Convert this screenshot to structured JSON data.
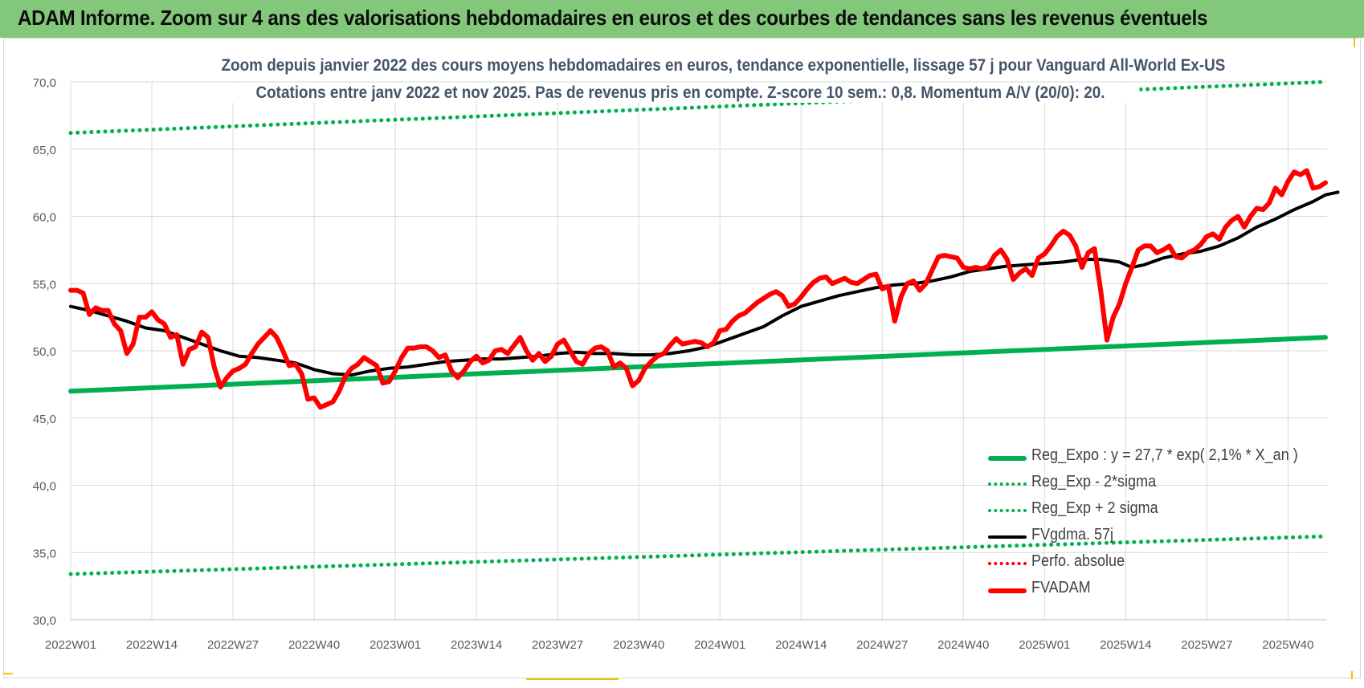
{
  "banner": {
    "title": "ADAM Informe. Zoom sur 4 ans des valorisations hebdomadaires en euros et des courbes de tendances sans les revenus éventuels"
  },
  "colors": {
    "banner": "#82c77a",
    "trend": "#00b050",
    "price": "#ff0000",
    "smooth": "#000000",
    "axis_text": "#595959"
  },
  "chart_data": {
    "type": "line",
    "title": "Zoom depuis janvier 2022 des cours moyens hebdomadaires en euros, tendance exponentielle, lissage 57 j pour Vanguard All-World Ex-US",
    "subtitle": "Cotations entre janv 2022 et nov 2025. Pas de revenus pris en compte. Z-score 10 sem.: 0,8. Momentum A/V (20/0): 20.",
    "xlabel": "",
    "ylabel": "",
    "ylim": [
      30,
      70
    ],
    "yticks": [
      "30,0",
      "35,0",
      "40,0",
      "45,0",
      "50,0",
      "55,0",
      "60,0",
      "65,0",
      "70,0"
    ],
    "week_count": 202,
    "xticks": [
      {
        "label": "2022W01",
        "week": 0
      },
      {
        "label": "2022W14",
        "week": 13
      },
      {
        "label": "2022W27",
        "week": 26
      },
      {
        "label": "2022W40",
        "week": 39
      },
      {
        "label": "2023W01",
        "week": 52
      },
      {
        "label": "2023W14",
        "week": 65
      },
      {
        "label": "2023W27",
        "week": 78
      },
      {
        "label": "2023W40",
        "week": 91
      },
      {
        "label": "2024W01",
        "week": 104
      },
      {
        "label": "2024W14",
        "week": 117
      },
      {
        "label": "2024W27",
        "week": 130
      },
      {
        "label": "2024W40",
        "week": 143
      },
      {
        "label": "2025W01",
        "week": 156
      },
      {
        "label": "2025W14",
        "week": 169
      },
      {
        "label": "2025W27",
        "week": 182
      },
      {
        "label": "2025W40",
        "week": 195
      }
    ],
    "legend_position": "bottom-right",
    "series": [
      {
        "name": "Reg_Expo : y = 27,7 * exp( 2,1% *  X_an )",
        "style": "solid-thick",
        "color": "#00b050",
        "points": [
          [
            0,
            47.0
          ],
          [
            201,
            51.0
          ]
        ]
      },
      {
        "name": "Reg_Exp - 2*sigma",
        "style": "dotted",
        "color": "#00b050",
        "points": [
          [
            0,
            33.4
          ],
          [
            201,
            36.2
          ]
        ]
      },
      {
        "name": "Reg_Exp + 2 sigma",
        "style": "dotted",
        "color": "#00b050",
        "points": [
          [
            0,
            66.2
          ],
          [
            201,
            70.0
          ]
        ]
      },
      {
        "name": "FVgdma. 57j",
        "style": "solid",
        "color": "#000000",
        "points": [
          [
            0,
            53.3
          ],
          [
            3,
            53.0
          ],
          [
            6,
            52.6
          ],
          [
            9,
            52.2
          ],
          [
            12,
            51.7
          ],
          [
            15,
            51.5
          ],
          [
            18,
            51.0
          ],
          [
            21,
            50.5
          ],
          [
            24,
            50.0
          ],
          [
            27,
            49.6
          ],
          [
            30,
            49.5
          ],
          [
            33,
            49.3
          ],
          [
            36,
            49.1
          ],
          [
            39,
            48.6
          ],
          [
            42,
            48.3
          ],
          [
            45,
            48.2
          ],
          [
            48,
            48.5
          ],
          [
            51,
            48.7
          ],
          [
            54,
            48.8
          ],
          [
            57,
            49.0
          ],
          [
            60,
            49.2
          ],
          [
            63,
            49.3
          ],
          [
            66,
            49.4
          ],
          [
            69,
            49.4
          ],
          [
            72,
            49.5
          ],
          [
            75,
            49.6
          ],
          [
            78,
            49.8
          ],
          [
            81,
            49.9
          ],
          [
            84,
            49.8
          ],
          [
            87,
            49.8
          ],
          [
            90,
            49.7
          ],
          [
            93,
            49.7
          ],
          [
            96,
            49.8
          ],
          [
            99,
            50.0
          ],
          [
            102,
            50.3
          ],
          [
            105,
            50.8
          ],
          [
            108,
            51.3
          ],
          [
            111,
            51.8
          ],
          [
            114,
            52.6
          ],
          [
            117,
            53.3
          ],
          [
            120,
            53.7
          ],
          [
            123,
            54.1
          ],
          [
            126,
            54.4
          ],
          [
            129,
            54.7
          ],
          [
            132,
            54.9
          ],
          [
            135,
            55.0
          ],
          [
            138,
            55.2
          ],
          [
            141,
            55.5
          ],
          [
            144,
            55.9
          ],
          [
            147,
            56.1
          ],
          [
            150,
            56.3
          ],
          [
            153,
            56.4
          ],
          [
            156,
            56.5
          ],
          [
            159,
            56.6
          ],
          [
            162,
            56.8
          ],
          [
            165,
            56.8
          ],
          [
            168,
            56.6
          ],
          [
            170,
            56.2
          ],
          [
            172,
            56.4
          ],
          [
            175,
            56.9
          ],
          [
            178,
            57.2
          ],
          [
            181,
            57.4
          ],
          [
            184,
            57.8
          ],
          [
            187,
            58.4
          ],
          [
            190,
            59.2
          ],
          [
            193,
            59.8
          ],
          [
            196,
            60.5
          ],
          [
            199,
            61.1
          ],
          [
            201,
            61.6
          ],
          [
            203,
            61.8
          ]
        ]
      },
      {
        "name": "Perfo. absolue",
        "style": "dotted",
        "color": "#ff0000",
        "points": []
      },
      {
        "name": "FVADAM",
        "style": "solid-thick",
        "color": "#ff0000",
        "points": [
          [
            0,
            54.5
          ],
          [
            1,
            54.5
          ],
          [
            2,
            54.3
          ],
          [
            3,
            52.7
          ],
          [
            4,
            53.2
          ],
          [
            5,
            53.0
          ],
          [
            6,
            53.0
          ],
          [
            7,
            52.0
          ],
          [
            8,
            51.5
          ],
          [
            9,
            49.8
          ],
          [
            10,
            50.5
          ],
          [
            11,
            52.5
          ],
          [
            12,
            52.5
          ],
          [
            13,
            52.9
          ],
          [
            14,
            52.3
          ],
          [
            15,
            52.0
          ],
          [
            16,
            51.0
          ],
          [
            17,
            51.2
          ],
          [
            18,
            49.0
          ],
          [
            19,
            50.1
          ],
          [
            20,
            50.3
          ],
          [
            21,
            51.4
          ],
          [
            22,
            51.0
          ],
          [
            23,
            48.8
          ],
          [
            24,
            47.3
          ],
          [
            25,
            48.0
          ],
          [
            26,
            48.5
          ],
          [
            27,
            48.7
          ],
          [
            28,
            49.0
          ],
          [
            29,
            49.8
          ],
          [
            30,
            50.5
          ],
          [
            31,
            51.0
          ],
          [
            32,
            51.5
          ],
          [
            33,
            51.0
          ],
          [
            34,
            50.0
          ],
          [
            35,
            48.9
          ],
          [
            36,
            49.0
          ],
          [
            37,
            48.3
          ],
          [
            38,
            46.4
          ],
          [
            39,
            46.5
          ],
          [
            40,
            45.8
          ],
          [
            41,
            46.0
          ],
          [
            42,
            46.2
          ],
          [
            43,
            47.0
          ],
          [
            44,
            48.1
          ],
          [
            45,
            48.7
          ],
          [
            46,
            49.0
          ],
          [
            47,
            49.5
          ],
          [
            48,
            49.2
          ],
          [
            49,
            48.9
          ],
          [
            50,
            47.6
          ],
          [
            51,
            47.7
          ],
          [
            52,
            48.5
          ],
          [
            53,
            49.5
          ],
          [
            54,
            50.2
          ],
          [
            55,
            50.2
          ],
          [
            56,
            50.3
          ],
          [
            57,
            50.3
          ],
          [
            58,
            50.0
          ],
          [
            59,
            49.5
          ],
          [
            60,
            49.7
          ],
          [
            61,
            48.5
          ],
          [
            62,
            48.0
          ],
          [
            63,
            48.5
          ],
          [
            64,
            49.2
          ],
          [
            65,
            49.6
          ],
          [
            66,
            49.1
          ],
          [
            67,
            49.3
          ],
          [
            68,
            50.0
          ],
          [
            69,
            50.1
          ],
          [
            70,
            49.8
          ],
          [
            71,
            50.4
          ],
          [
            72,
            51.0
          ],
          [
            73,
            50.0
          ],
          [
            74,
            49.3
          ],
          [
            75,
            49.8
          ],
          [
            76,
            49.2
          ],
          [
            77,
            49.6
          ],
          [
            78,
            50.5
          ],
          [
            79,
            50.8
          ],
          [
            80,
            50.0
          ],
          [
            81,
            49.2
          ],
          [
            82,
            49.0
          ],
          [
            83,
            49.8
          ],
          [
            84,
            50.2
          ],
          [
            85,
            50.3
          ],
          [
            86,
            50.0
          ],
          [
            87,
            48.8
          ],
          [
            88,
            49.1
          ],
          [
            89,
            48.7
          ],
          [
            90,
            47.4
          ],
          [
            91,
            47.8
          ],
          [
            92,
            48.7
          ],
          [
            93,
            49.2
          ],
          [
            94,
            49.6
          ],
          [
            95,
            49.8
          ],
          [
            96,
            50.4
          ],
          [
            97,
            50.9
          ],
          [
            98,
            50.5
          ],
          [
            99,
            50.6
          ],
          [
            100,
            50.7
          ],
          [
            101,
            50.6
          ],
          [
            102,
            50.3
          ],
          [
            103,
            50.6
          ],
          [
            104,
            51.5
          ],
          [
            105,
            51.6
          ],
          [
            106,
            52.2
          ],
          [
            107,
            52.6
          ],
          [
            108,
            52.8
          ],
          [
            109,
            53.2
          ],
          [
            110,
            53.6
          ],
          [
            111,
            53.9
          ],
          [
            112,
            54.2
          ],
          [
            113,
            54.4
          ],
          [
            114,
            54.1
          ],
          [
            115,
            53.3
          ],
          [
            116,
            53.5
          ],
          [
            117,
            54.0
          ],
          [
            118,
            54.6
          ],
          [
            119,
            55.1
          ],
          [
            120,
            55.4
          ],
          [
            121,
            55.5
          ],
          [
            122,
            55.0
          ],
          [
            123,
            55.2
          ],
          [
            124,
            55.4
          ],
          [
            125,
            55.1
          ],
          [
            126,
            55.0
          ],
          [
            127,
            55.3
          ],
          [
            128,
            55.6
          ],
          [
            129,
            55.7
          ],
          [
            130,
            54.6
          ],
          [
            131,
            54.8
          ],
          [
            132,
            52.2
          ],
          [
            133,
            54.0
          ],
          [
            134,
            55.0
          ],
          [
            135,
            55.2
          ],
          [
            136,
            54.5
          ],
          [
            137,
            55.0
          ],
          [
            138,
            56.0
          ],
          [
            139,
            57.0
          ],
          [
            140,
            57.1
          ],
          [
            141,
            57.0
          ],
          [
            142,
            56.9
          ],
          [
            143,
            56.2
          ],
          [
            144,
            56.1
          ],
          [
            145,
            56.2
          ],
          [
            146,
            56.1
          ],
          [
            147,
            56.3
          ],
          [
            148,
            57.1
          ],
          [
            149,
            57.5
          ],
          [
            150,
            56.8
          ],
          [
            151,
            55.3
          ],
          [
            152,
            55.8
          ],
          [
            153,
            56.1
          ],
          [
            154,
            55.6
          ],
          [
            155,
            56.9
          ],
          [
            156,
            57.2
          ],
          [
            157,
            57.8
          ],
          [
            158,
            58.5
          ],
          [
            159,
            58.9
          ],
          [
            160,
            58.6
          ],
          [
            161,
            57.8
          ],
          [
            162,
            56.2
          ],
          [
            163,
            57.3
          ],
          [
            164,
            57.6
          ],
          [
            165,
            54.5
          ],
          [
            166,
            50.8
          ],
          [
            167,
            52.5
          ],
          [
            168,
            53.5
          ],
          [
            169,
            55.0
          ],
          [
            170,
            56.2
          ],
          [
            171,
            57.5
          ],
          [
            172,
            57.8
          ],
          [
            173,
            57.8
          ],
          [
            174,
            57.3
          ],
          [
            175,
            57.5
          ],
          [
            176,
            57.8
          ],
          [
            177,
            57.0
          ],
          [
            178,
            56.9
          ],
          [
            179,
            57.3
          ],
          [
            180,
            57.5
          ],
          [
            181,
            57.9
          ],
          [
            182,
            58.5
          ],
          [
            183,
            58.7
          ],
          [
            184,
            58.3
          ],
          [
            185,
            59.2
          ],
          [
            186,
            59.7
          ],
          [
            187,
            60.0
          ],
          [
            188,
            59.2
          ],
          [
            189,
            60.0
          ],
          [
            190,
            60.6
          ],
          [
            191,
            60.5
          ],
          [
            192,
            61.0
          ],
          [
            193,
            62.1
          ],
          [
            194,
            61.6
          ],
          [
            195,
            62.6
          ],
          [
            196,
            63.3
          ],
          [
            197,
            63.1
          ],
          [
            198,
            63.4
          ],
          [
            199,
            62.1
          ],
          [
            200,
            62.2
          ],
          [
            201,
            62.5
          ]
        ]
      }
    ]
  }
}
